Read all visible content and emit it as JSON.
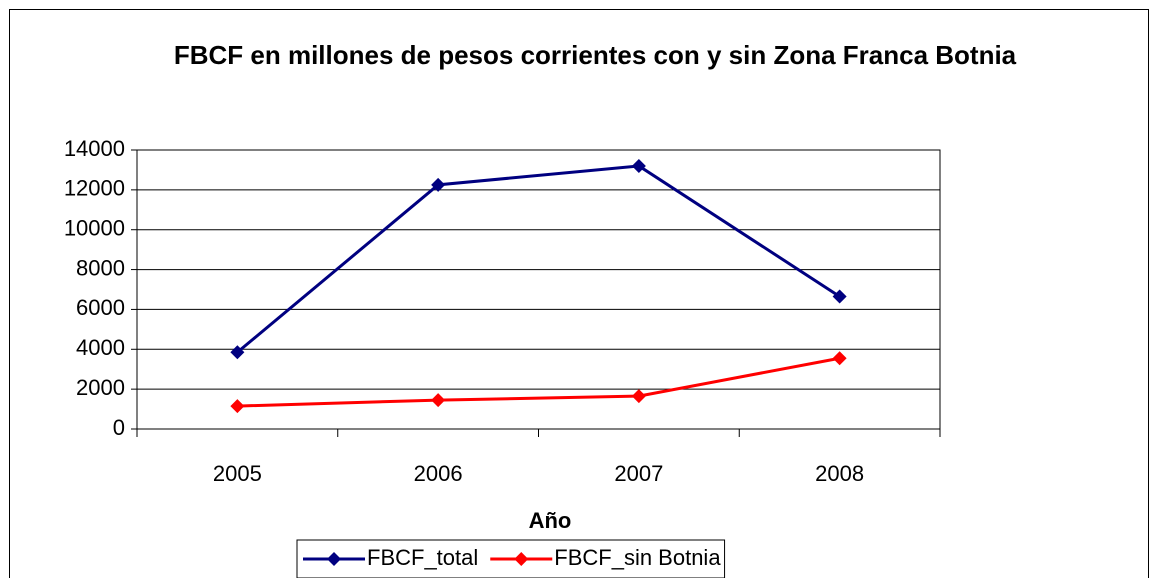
{
  "chart_data": {
    "type": "line",
    "title": "FBCF en millones de pesos corrientes con y sin Zona Franca Botnia",
    "x_label": "Año",
    "categories": [
      "2005",
      "2006",
      "2007",
      "2008"
    ],
    "series": [
      {
        "name": "FBCF_total",
        "color": "#000080",
        "values": [
          3850,
          12250,
          13200,
          6650
        ]
      },
      {
        "name": "FBCF_sin Botnia",
        "color": "#ff0000",
        "values": [
          1150,
          1450,
          1650,
          3550
        ]
      }
    ],
    "ylim": [
      0,
      14000
    ],
    "yticks": [
      0,
      2000,
      4000,
      6000,
      8000,
      10000,
      12000,
      14000
    ],
    "grid": true,
    "legend": "bottom"
  }
}
